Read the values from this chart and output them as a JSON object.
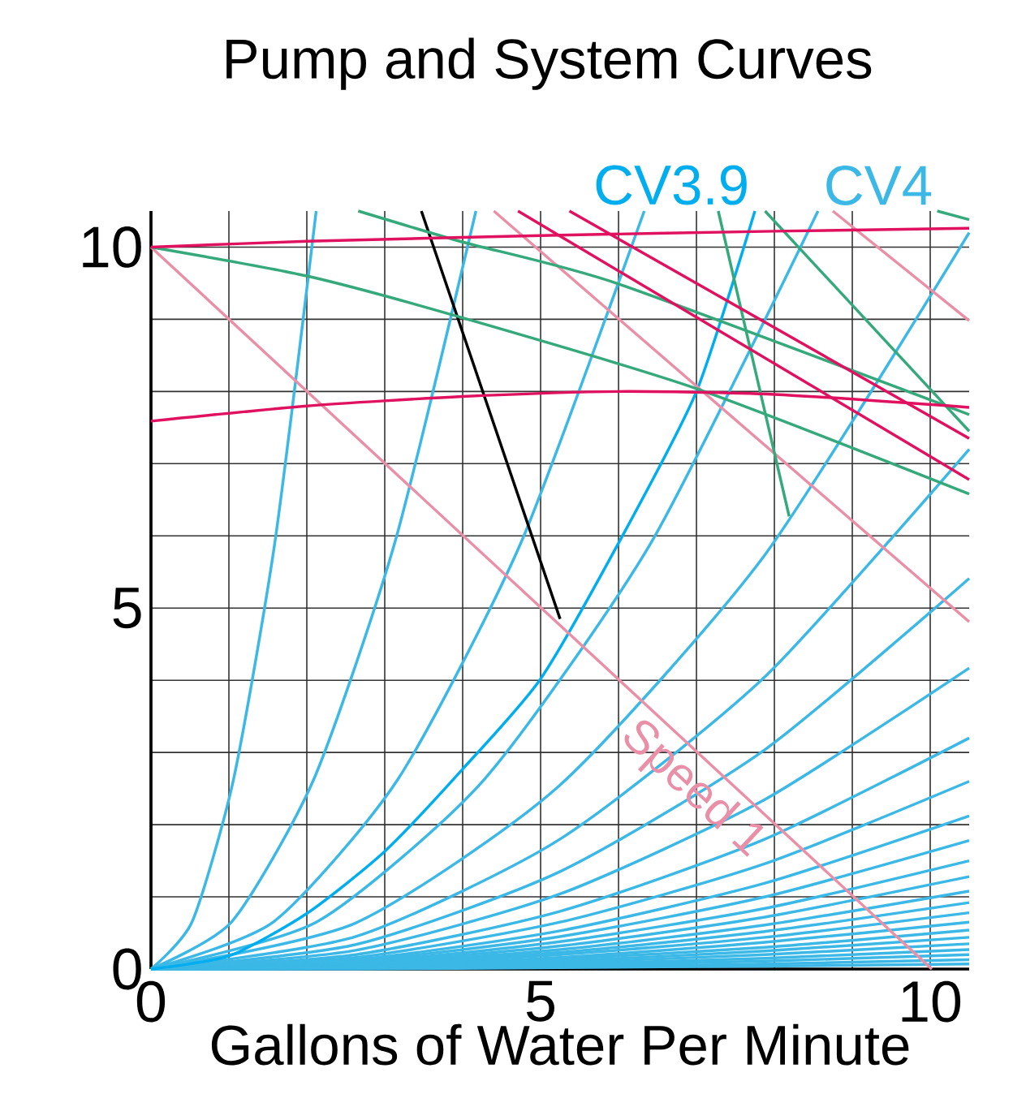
{
  "chart_data": {
    "type": "line",
    "title": "Pump and System Curves",
    "xlabel": "Gallons of Water Per Minute",
    "xlim": [
      0,
      10.5
    ],
    "ylim": [
      0,
      10.5
    ],
    "xticks": [
      0,
      {
        "value": 1,
        "label": null
      },
      {
        "value": 2,
        "label": null
      },
      {
        "value": 3,
        "label": null
      },
      {
        "value": 4,
        "label": null
      },
      5,
      {
        "value": 6,
        "label": null
      },
      {
        "value": 7,
        "label": null
      },
      {
        "value": 8,
        "label": null
      },
      {
        "value": 9,
        "label": null
      },
      10
    ],
    "yticks": [
      0,
      {
        "value": 1,
        "label": null
      },
      {
        "value": 2,
        "label": null
      },
      {
        "value": 3,
        "label": null
      },
      {
        "value": 4,
        "label": null
      },
      5,
      {
        "value": 6,
        "label": null
      },
      {
        "value": 7,
        "label": null
      },
      {
        "value": 8,
        "label": null
      },
      {
        "value": 9,
        "label": null
      },
      10
    ],
    "grid": true,
    "series": [
      {
        "color": "#3bb8e6",
        "x": [
          0,
          0.53,
          1.06,
          1.59,
          2.12
        ],
        "values": [
          0,
          0.66,
          2.63,
          5.91,
          10.5
        ]
      },
      {
        "color": "#3bb8e6",
        "x": [
          0,
          1.04,
          2.09,
          3.13,
          4.17
        ],
        "values": [
          0,
          0.66,
          2.63,
          5.91,
          10.5
        ]
      },
      {
        "color": "#3bb8e6",
        "x": [
          0,
          1.58,
          3.17,
          4.75,
          6.33
        ],
        "values": [
          0,
          0.66,
          2.63,
          5.91,
          10.5
        ]
      },
      {
        "name": "CV4",
        "color": "#3bb8e6",
        "x": [
          0,
          2.14,
          4.28,
          6.42,
          8.56
        ],
        "values": [
          0,
          0.66,
          2.63,
          5.91,
          10.5
        ]
      },
      {
        "color": "#3bb8e6",
        "x": [
          0,
          2.63,
          5.25,
          7.88,
          10.5
        ],
        "values": [
          0,
          0.64,
          2.55,
          5.74,
          10.2
        ]
      },
      {
        "color": "#3bb8e6",
        "x": [
          0,
          2.63,
          5.25,
          7.88,
          10.5
        ],
        "values": [
          0,
          0.45,
          1.8,
          4.05,
          7.2
        ]
      },
      {
        "color": "#3bb8e6",
        "x": [
          0,
          2.63,
          5.25,
          7.88,
          10.5
        ],
        "values": [
          0,
          0.34,
          1.35,
          3.04,
          5.41
        ]
      },
      {
        "color": "#3bb8e6",
        "x": [
          0,
          2.63,
          5.25,
          7.88,
          10.5
        ],
        "values": [
          0,
          0.26,
          1.04,
          2.35,
          4.17
        ]
      },
      {
        "color": "#3bb8e6",
        "x": [
          0,
          2.63,
          5.25,
          7.88,
          10.5
        ],
        "values": [
          0,
          0.2,
          0.8,
          1.8,
          3.2
        ]
      },
      {
        "color": "#3bb8e6",
        "x": [
          0,
          2.63,
          5.25,
          7.88,
          10.5
        ],
        "values": [
          0,
          0.16,
          0.65,
          1.46,
          2.6
        ]
      },
      {
        "color": "#3bb8e6",
        "x": [
          0,
          2.63,
          5.25,
          7.88,
          10.5
        ],
        "values": [
          0,
          0.13,
          0.53,
          1.19,
          2.12
        ]
      },
      {
        "color": "#3bb8e6",
        "x": [
          0,
          2.63,
          5.25,
          7.88,
          10.5
        ],
        "values": [
          0,
          0.11,
          0.45,
          1.0,
          1.78
        ]
      },
      {
        "color": "#3bb8e6",
        "x": [
          0,
          2.63,
          5.25,
          7.88,
          10.5
        ],
        "values": [
          0,
          0.09,
          0.38,
          0.84,
          1.5
        ]
      },
      {
        "color": "#3bb8e6",
        "x": [
          0,
          2.63,
          5.25,
          7.88,
          10.5
        ],
        "values": [
          0,
          0.08,
          0.32,
          0.72,
          1.28
        ]
      },
      {
        "color": "#3bb8e6",
        "x": [
          0,
          2.63,
          5.25,
          7.88,
          10.5
        ],
        "values": [
          0,
          0.07,
          0.27,
          0.61,
          1.08
        ]
      },
      {
        "color": "#3bb8e6",
        "x": [
          0,
          2.63,
          5.25,
          7.88,
          10.5
        ],
        "values": [
          0,
          0.06,
          0.23,
          0.52,
          0.92
        ]
      },
      {
        "color": "#3bb8e6",
        "x": [
          0,
          2.63,
          5.25,
          7.88,
          10.5
        ],
        "values": [
          0,
          0.05,
          0.2,
          0.44,
          0.78
        ]
      },
      {
        "color": "#3bb8e6",
        "x": [
          0,
          2.63,
          5.25,
          7.88,
          10.5
        ],
        "values": [
          0,
          0.04,
          0.16,
          0.37,
          0.65
        ]
      },
      {
        "color": "#3bb8e6",
        "x": [
          0,
          2.63,
          5.25,
          7.88,
          10.5
        ],
        "values": [
          0,
          0.03,
          0.14,
          0.3,
          0.54
        ]
      },
      {
        "color": "#3bb8e6",
        "x": [
          0,
          2.63,
          5.25,
          7.88,
          10.5
        ],
        "values": [
          0,
          0.03,
          0.11,
          0.25,
          0.44
        ]
      },
      {
        "color": "#3bb8e6",
        "x": [
          0,
          2.63,
          5.25,
          7.88,
          10.5
        ],
        "values": [
          0,
          0.02,
          0.09,
          0.2,
          0.35
        ]
      },
      {
        "color": "#3bb8e6",
        "x": [
          0,
          2.63,
          5.25,
          7.88,
          10.5
        ],
        "values": [
          0,
          0.02,
          0.07,
          0.15,
          0.27
        ]
      },
      {
        "color": "#3bb8e6",
        "x": [
          0,
          2.63,
          5.25,
          7.88,
          10.5
        ],
        "values": [
          0,
          0.01,
          0.05,
          0.11,
          0.2
        ]
      },
      {
        "color": "#3bb8e6",
        "x": [
          0,
          2.63,
          5.25,
          7.88,
          10.5
        ],
        "values": [
          0,
          0.01,
          0.03,
          0.07,
          0.13
        ]
      },
      {
        "color": "#3bb8e6",
        "x": [
          0,
          2.63,
          5.25,
          7.88,
          10.5
        ],
        "values": [
          0,
          0.0,
          0.02,
          0.04,
          0.07
        ]
      },
      {
        "name": "CV3.9",
        "color": "#00aeef",
        "x": [
          0,
          1,
          2,
          3,
          4,
          5,
          6,
          7,
          7.75
        ],
        "values": [
          0,
          0.18,
          0.77,
          1.63,
          2.77,
          4.02,
          5.9,
          8.0,
          10.5
        ]
      },
      {
        "color": "#000000",
        "x": [
          3.47,
          5.25
        ],
        "values": [
          10.5,
          4.85
        ]
      },
      {
        "name": "Speed 1",
        "color": "#e990a8",
        "x": [
          0,
          10.02
        ],
        "values": [
          10,
          0
        ]
      },
      {
        "color": "#e990a8",
        "x": [
          4.4,
          10.5
        ],
        "values": [
          10.5,
          4.81
        ]
      },
      {
        "color": "#e990a8",
        "x": [
          8.75,
          10.5
        ],
        "values": [
          10.5,
          8.98
        ]
      },
      {
        "color": "#35a97c",
        "x": [
          0,
          2,
          4,
          7,
          10.5
        ],
        "values": [
          10,
          9.6,
          9.02,
          8.04,
          6.58
        ]
      },
      {
        "color": "#35a97c",
        "x": [
          2.66,
          4,
          6,
          10.5
        ],
        "values": [
          10.5,
          10.07,
          9.49,
          7.68
        ]
      },
      {
        "color": "#35a97c",
        "x": [
          7.28,
          8.19
        ],
        "values": [
          10.5,
          6.27
        ]
      },
      {
        "color": "#35a97c",
        "x": [
          7.88,
          10.5
        ],
        "values": [
          10.5,
          7.45
        ]
      },
      {
        "color": "#35a97c",
        "x": [
          10.09,
          10.5
        ],
        "values": [
          10.5,
          10.38
        ]
      },
      {
        "color": "#e0115f",
        "x": [
          0,
          2,
          5,
          8,
          10.5
        ],
        "values": [
          10,
          10.08,
          10.16,
          10.22,
          10.26
        ]
      },
      {
        "color": "#e0115f",
        "x": [
          0,
          2,
          4,
          6,
          8,
          10.5
        ],
        "values": [
          7.59,
          7.8,
          7.93,
          8.0,
          7.96,
          7.78
        ]
      },
      {
        "color": "#e0115f",
        "x": [
          4.71,
          10.5
        ],
        "values": [
          10.5,
          6.78
        ]
      },
      {
        "color": "#e0115f",
        "x": [
          5.37,
          10.5
        ],
        "values": [
          10.5,
          7.35
        ]
      }
    ]
  }
}
